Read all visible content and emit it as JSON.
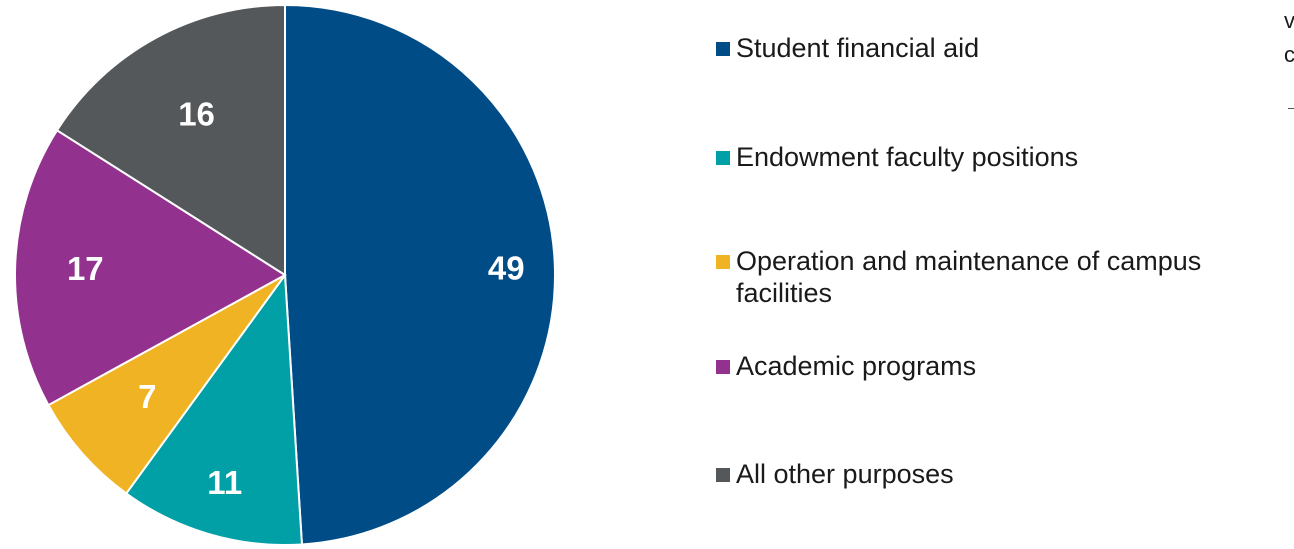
{
  "chart_data": {
    "type": "pie",
    "title": "",
    "slices": [
      {
        "label": "Student financial aid",
        "value": 49,
        "color": "#004C87"
      },
      {
        "label": "Endowment faculty positions",
        "value": 11,
        "color": "#00A0A6"
      },
      {
        "label": "Operation and maintenance of campus facilities",
        "value": 7,
        "color": "#F0B323"
      },
      {
        "label": "Academic programs",
        "value": 17,
        "color": "#93328E"
      },
      {
        "label": "All other purposes",
        "value": 16,
        "color": "#54585A"
      }
    ],
    "data_labels": "inside",
    "legend_position": "right"
  },
  "legend_items": [
    "Student financial aid",
    "Endowment faculty positions",
    "Operation and maintenance of campus facilities",
    "Academic programs",
    "All other purposes"
  ],
  "edge_text": [
    "v",
    "c"
  ]
}
